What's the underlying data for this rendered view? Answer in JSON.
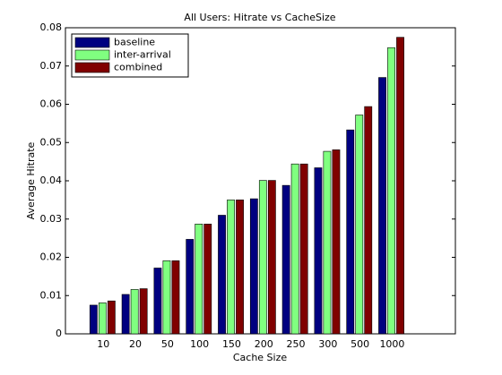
{
  "chart_data": {
    "type": "bar",
    "title": "All Users: Hitrate vs CacheSize",
    "x_label": "Cache Size",
    "y_label": "Average Hitrate",
    "categories": [
      "10",
      "20",
      "50",
      "100",
      "150",
      "200",
      "250",
      "300",
      "500",
      "1000"
    ],
    "series": [
      {
        "name": "baseline",
        "color": "#000080",
        "values": [
          0.0075,
          0.0103,
          0.0172,
          0.0247,
          0.031,
          0.0353,
          0.0388,
          0.0434,
          0.0533,
          0.067
        ]
      },
      {
        "name": "inter-arrival",
        "color": "#80ff80",
        "values": [
          0.0081,
          0.0116,
          0.0191,
          0.0287,
          0.035,
          0.0401,
          0.0444,
          0.0477,
          0.0572,
          0.0748
        ]
      },
      {
        "name": "combined",
        "color": "#800000",
        "values": [
          0.0086,
          0.0118,
          0.0191,
          0.0287,
          0.035,
          0.0401,
          0.0444,
          0.0481,
          0.0594,
          0.0775
        ]
      }
    ],
    "ylim": [
      0,
      0.08
    ],
    "yticks": [
      0,
      0.01,
      0.02,
      0.03,
      0.04,
      0.05,
      0.06,
      0.07,
      0.08
    ],
    "grid": false,
    "legend": "upper-left"
  }
}
